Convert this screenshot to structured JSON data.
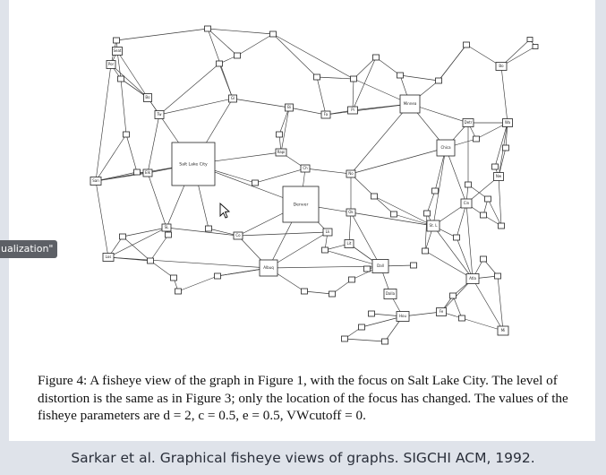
{
  "tooltip": {
    "text": "ualization\""
  },
  "figure": {
    "caption": "Figure 4: A fisheye view of the graph in Figure 1, with the focus on Salt Lake City. The level of distortion is the same as in Figure 3; only the location of the focus has changed. The values of the fisheye parameters are d = 2, c = 0.5, e = 0.5, VWcutoff = 0."
  },
  "citation": {
    "text": "Sarkar et al. Graphical fisheye views of graphs. SIGCHI ACM, 1992."
  },
  "graph": {
    "focus": "Salt Lake City",
    "labels": {
      "slc": "Salt Lake City",
      "denver": "Denver",
      "minnea": "Minnea",
      "chica": "Chica",
      "albuq": "Albuq",
      "dall": "Dall",
      "hou": "Hou",
      "dalla": "Dalla",
      "sea": "Seat",
      "por": "Por",
      "bo": "Bo",
      "tw": "Tw",
      "gl": "Gl",
      "bi": "Bi",
      "fa": "Fa",
      "pi": "Pi",
      "rap": "Rapi",
      "ch": "Ch",
      "no": "No",
      "sfr": "San",
      "elk": "Elk",
      "sl": "SL",
      "co": "Co",
      "lc": "Lk",
      "ok": "Ok",
      "lir": "Lit",
      "stl": "St. L",
      "om": "Om",
      "det": "Detr",
      "buf": "Buf",
      "bos": "Bo",
      "ny": "Wa",
      "cin": "Cin",
      "atl": "Atla",
      "nor": "Nw",
      "mia": "Mi",
      "los": "Los",
      "fx": "Fe"
    }
  }
}
